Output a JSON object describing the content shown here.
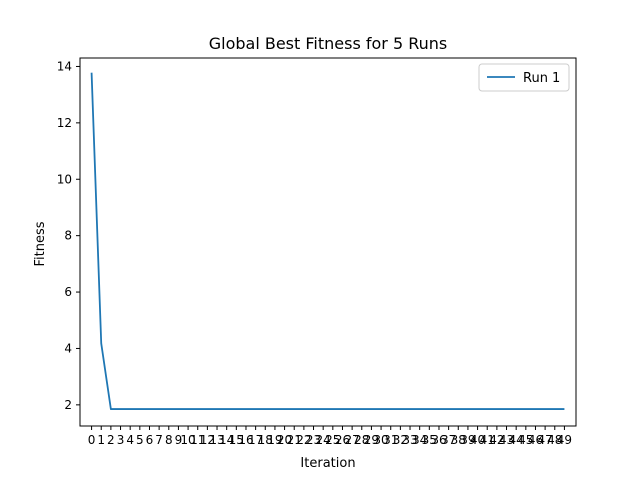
{
  "chart_data": {
    "type": "line",
    "title": "Global Best Fitness for 5 Runs",
    "xlabel": "Iteration",
    "ylabel": "Fitness",
    "x": [
      0,
      1,
      2,
      3,
      4,
      5,
      6,
      7,
      8,
      9,
      10,
      11,
      12,
      13,
      14,
      15,
      16,
      17,
      18,
      19,
      20,
      21,
      22,
      23,
      24,
      25,
      26,
      27,
      28,
      29,
      30,
      31,
      32,
      33,
      34,
      35,
      36,
      37,
      38,
      39,
      40,
      41,
      42,
      43,
      44,
      45,
      46,
      47,
      48,
      49
    ],
    "xticks": [
      "0",
      "1",
      "2",
      "3",
      "4",
      "5",
      "6",
      "7",
      "8",
      "9",
      "10",
      "11",
      "12",
      "13",
      "14",
      "15",
      "16",
      "17",
      "18",
      "19",
      "20",
      "21",
      "22",
      "23",
      "24",
      "25",
      "26",
      "27",
      "28",
      "29",
      "30",
      "31",
      "32",
      "33",
      "34",
      "35",
      "36",
      "37",
      "38",
      "39",
      "40",
      "41",
      "42",
      "43",
      "44",
      "45",
      "46",
      "47",
      "48",
      "49"
    ],
    "yticks": [
      2,
      4,
      6,
      8,
      10,
      12,
      14
    ],
    "ylim": [
      1.25,
      14.3
    ],
    "xlim": [
      -1.2,
      50.2
    ],
    "grid": false,
    "legend_position": "top-right",
    "series": [
      {
        "name": "Run 1",
        "color": "#1f77b4",
        "values": [
          13.78,
          4.18,
          1.85,
          1.85,
          1.85,
          1.85,
          1.85,
          1.85,
          1.85,
          1.85,
          1.85,
          1.85,
          1.85,
          1.85,
          1.85,
          1.85,
          1.85,
          1.85,
          1.85,
          1.85,
          1.85,
          1.85,
          1.85,
          1.85,
          1.85,
          1.85,
          1.85,
          1.85,
          1.85,
          1.85,
          1.85,
          1.85,
          1.85,
          1.85,
          1.85,
          1.85,
          1.85,
          1.85,
          1.85,
          1.85,
          1.85,
          1.85,
          1.85,
          1.85,
          1.85,
          1.85,
          1.85,
          1.85,
          1.85,
          1.85
        ]
      }
    ]
  }
}
